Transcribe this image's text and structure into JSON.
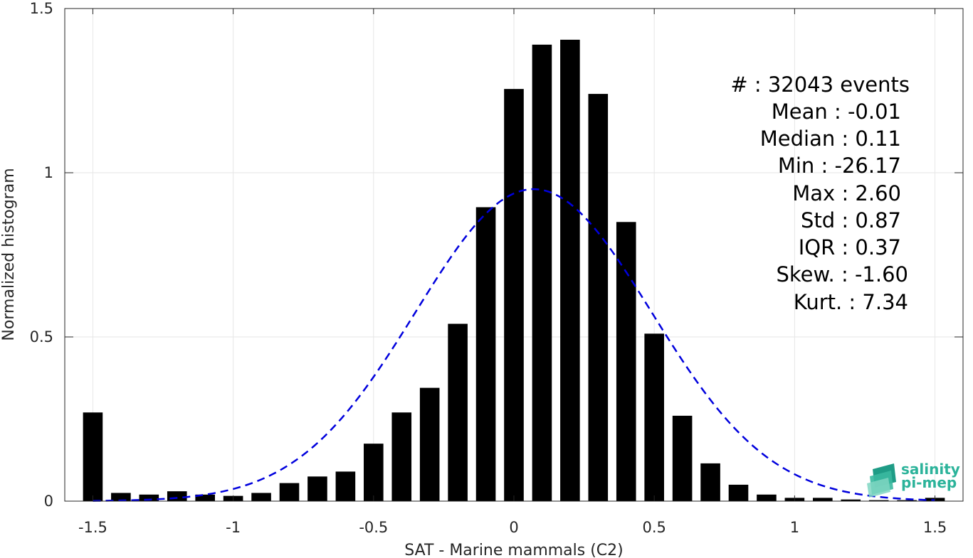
{
  "chart_data": {
    "type": "bar",
    "xlabel": "SAT - Marine mammals (C2)",
    "ylabel": "Normalized histogram",
    "xlim": [
      -1.6,
      1.6
    ],
    "ylim": [
      0,
      1.5
    ],
    "xticks": [
      -1.5,
      -1,
      -0.5,
      0,
      0.5,
      1,
      1.5
    ],
    "xtick_labels": [
      "-1.5",
      "-1",
      "-0.5",
      "0",
      "0.5",
      "1",
      "1.5"
    ],
    "yticks": [
      0,
      0.5,
      1,
      1.5
    ],
    "ytick_labels": [
      "0",
      "0.5",
      "1",
      "1.5"
    ],
    "grid": true,
    "bar_width": 0.07,
    "bar_color": "#000000",
    "x": [
      -1.5,
      -1.4,
      -1.3,
      -1.2,
      -1.1,
      -1.0,
      -0.9,
      -0.8,
      -0.7,
      -0.6,
      -0.5,
      -0.4,
      -0.3,
      -0.2,
      -0.1,
      0.0,
      0.1,
      0.2,
      0.3,
      0.4,
      0.5,
      0.6,
      0.7,
      0.8,
      0.9,
      1.0,
      1.1,
      1.2,
      1.3,
      1.4,
      1.5
    ],
    "values": [
      0.27,
      0.025,
      0.02,
      0.03,
      0.02,
      0.016,
      0.025,
      0.055,
      0.075,
      0.09,
      0.175,
      0.27,
      0.345,
      0.54,
      0.895,
      1.255,
      1.39,
      1.405,
      1.24,
      0.85,
      0.51,
      0.26,
      0.115,
      0.05,
      0.02,
      0.01,
      0.01,
      0.005,
      0.003,
      0.003,
      0.01
    ],
    "fit_curve": {
      "style": "dashed",
      "color": "#0000dd",
      "mean": 0.07,
      "std": 0.42,
      "peak": 0.95,
      "x_range": [
        -1.5,
        1.5
      ]
    },
    "annotation_lines": [
      "#  : 32043 events",
      "Mean : -0.01",
      "Median : 0.11",
      "Min : -26.17",
      "Max : 2.60",
      "Std : 0.87",
      "IQR : 0.37",
      "Skew. : -1.60",
      "Kurt. : 7.34"
    ]
  },
  "logo": {
    "line1": "salinity",
    "line2": "pi-mep",
    "color": "#2bb39a"
  }
}
